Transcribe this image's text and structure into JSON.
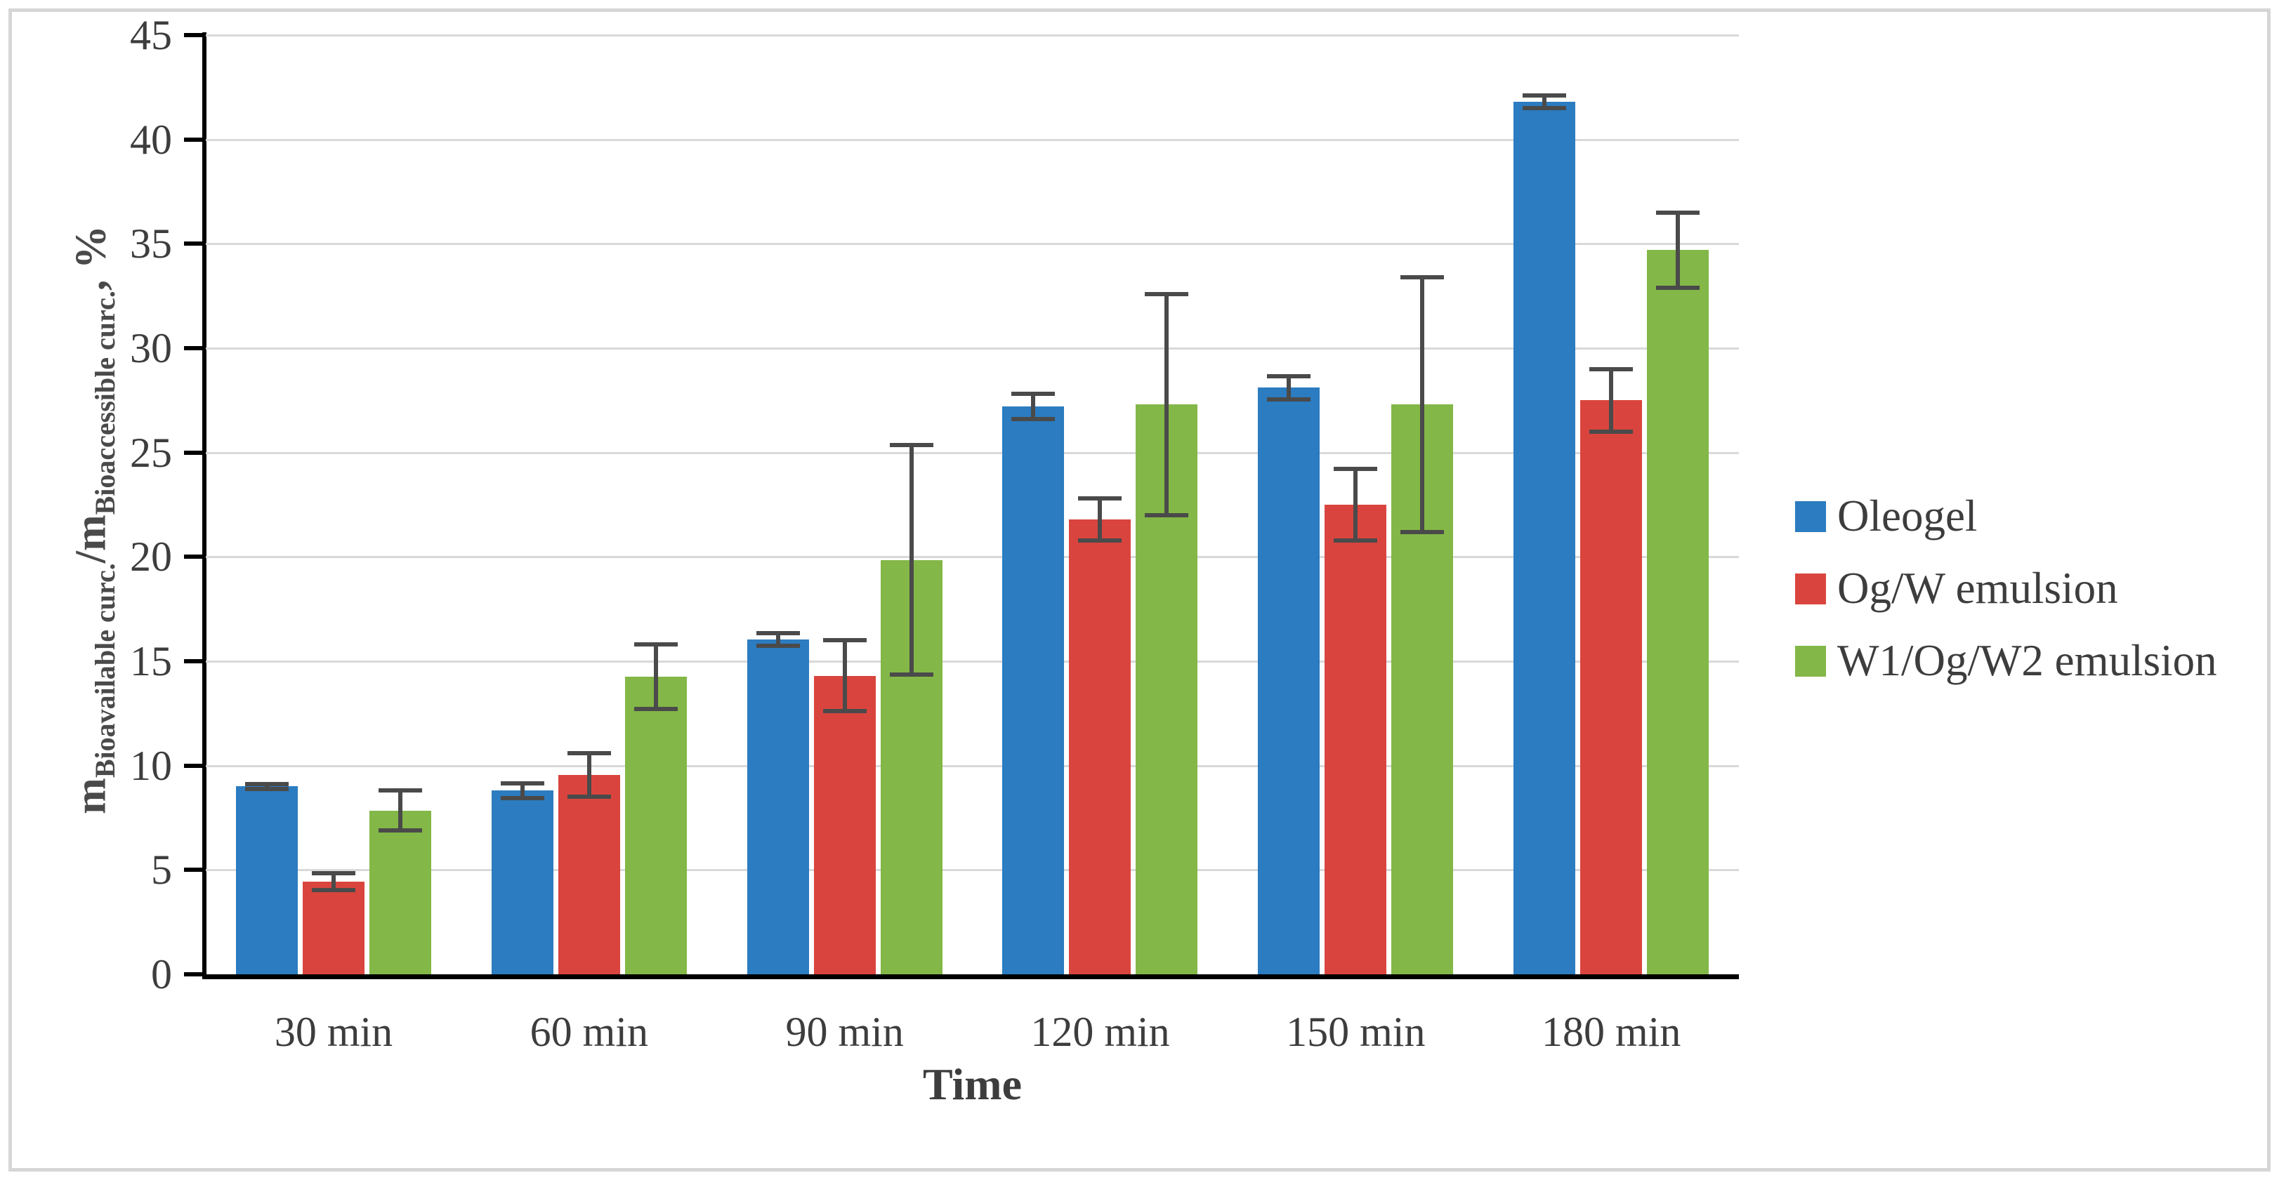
{
  "chart_data": {
    "type": "bar",
    "title": "",
    "categories": [
      "30 min",
      "60 min",
      "90 min",
      "120 min",
      "150 min",
      "180 min"
    ],
    "series": [
      {
        "name": "Oleogel",
        "color": "#2b7cc0",
        "values": [
          9.0,
          8.8,
          16.05,
          27.2,
          28.1,
          41.8
        ],
        "errors": [
          0.12,
          0.35,
          0.3,
          0.6,
          0.55,
          0.3
        ]
      },
      {
        "name": "Og/W emulsion",
        "color": "#d9453e",
        "values": [
          4.45,
          9.55,
          14.3,
          21.8,
          22.5,
          27.5
        ],
        "errors": [
          0.4,
          1.05,
          1.7,
          1.0,
          1.7,
          1.5
        ]
      },
      {
        "name": "W1/Og/W2 emulsion",
        "color": "#83b747",
        "values": [
          7.85,
          14.25,
          19.85,
          27.3,
          27.3,
          34.7
        ],
        "errors": [
          0.95,
          1.55,
          5.5,
          5.3,
          6.1,
          1.8
        ]
      }
    ],
    "xlabel": "Time",
    "ylabel": "m_Bioavailable curc. / m_Bioaccessible curc., %",
    "ylabel_parts": {
      "m1": "m",
      "sub1": "Bioavailable curc.",
      "mid": "/m",
      "sub2": "Bioaccessible curc.",
      "tail": ", %"
    },
    "ylim": [
      0,
      45
    ],
    "ytick_step": 5,
    "yticks": [
      "0",
      "5",
      "10",
      "15",
      "20",
      "25",
      "30",
      "35",
      "40",
      "45"
    ],
    "grid": true,
    "legend_position": "right",
    "error_bar_color": "#4a4a4a",
    "gridline_color": "#d9d9d9",
    "axis_color": "#000000",
    "text_color": "#3d3d3d"
  }
}
